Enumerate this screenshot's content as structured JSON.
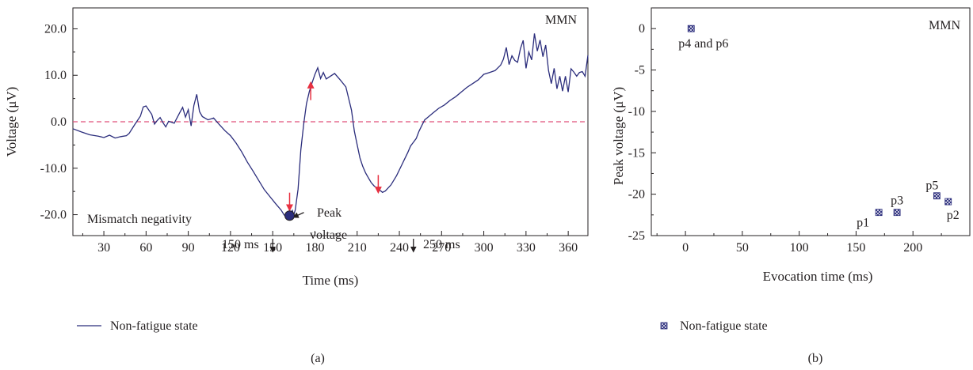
{
  "colors": {
    "series": "#2b2d7c",
    "baseline": "#e0517a",
    "arrow_red": "#e83040",
    "arrow_black": "#231f20",
    "axis": "#231f20"
  },
  "chart_data": [
    {
      "type": "line",
      "panel_label": "(a)",
      "xlabel": "Time (ms)",
      "ylabel": "Voltage (μV)",
      "xlim": [
        8,
        374
      ],
      "ylim": [
        -24.5,
        24.5
      ],
      "xticks": [
        30,
        60,
        90,
        120,
        150,
        180,
        210,
        240,
        270,
        300,
        330,
        360
      ],
      "yticks": [
        {
          "value": 20,
          "label": "20.0"
        },
        {
          "value": 10,
          "label": "10.0"
        },
        {
          "value": 0,
          "label": "0.0"
        },
        {
          "value": -10,
          "label": "-10.0"
        },
        {
          "value": -20,
          "label": "-20.0"
        }
      ],
      "corner_label": "MMN",
      "baseline": 0,
      "series": [
        {
          "name": "Non-fatigue state",
          "x": [
            8,
            14,
            20,
            26,
            30,
            34,
            38,
            42,
            46,
            48,
            52,
            56,
            58,
            60,
            64,
            66,
            68,
            70,
            72,
            74,
            76,
            80,
            84,
            86,
            88,
            90,
            92,
            94,
            96,
            98,
            100,
            104,
            108,
            112,
            116,
            120,
            124,
            128,
            132,
            136,
            140,
            144,
            148,
            152,
            156,
            158,
            160,
            162,
            164,
            165,
            166,
            168,
            170,
            172,
            174,
            176,
            178,
            180,
            182,
            184,
            186,
            188,
            190,
            194,
            198,
            202,
            206,
            208,
            210,
            212,
            214,
            216,
            218,
            220,
            222,
            224,
            226,
            228,
            230,
            234,
            238,
            242,
            246,
            248,
            250,
            252,
            254,
            256,
            258,
            260,
            264,
            268,
            272,
            276,
            280,
            284,
            288,
            292,
            296,
            300,
            304,
            308,
            312,
            314,
            316,
            318,
            320,
            322,
            324,
            326,
            328,
            330,
            332,
            334,
            336,
            338,
            340,
            342,
            344,
            346,
            348,
            350,
            352,
            354,
            356,
            358,
            360,
            362,
            364,
            366,
            368,
            370,
            372,
            374
          ],
          "y": [
            -1.5,
            -2.2,
            -2.8,
            -3.1,
            -3.4,
            -2.9,
            -3.5,
            -3.2,
            -3.0,
            -2.5,
            -0.6,
            1.2,
            3.2,
            3.4,
            1.6,
            -0.5,
            0.3,
            0.9,
            -0.2,
            -1.1,
            0.1,
            -0.3,
            2.0,
            3.1,
            1.0,
            2.6,
            -0.9,
            3.5,
            5.9,
            2.2,
            1.1,
            0.4,
            0.8,
            -0.6,
            -1.9,
            -3.0,
            -4.6,
            -6.5,
            -8.7,
            -10.6,
            -12.6,
            -14.6,
            -16.1,
            -17.6,
            -19.0,
            -20.0,
            -20.6,
            -20.4,
            -19.1,
            -20.0,
            -19.0,
            -14.5,
            -6.0,
            -0.5,
            3.9,
            6.5,
            8.4,
            10.2,
            11.6,
            9.3,
            10.6,
            9.2,
            9.6,
            10.4,
            9.0,
            7.5,
            2.5,
            -2.0,
            -4.9,
            -7.8,
            -9.6,
            -11.0,
            -12.1,
            -13.1,
            -13.8,
            -14.3,
            -14.7,
            -15.2,
            -14.9,
            -13.6,
            -11.6,
            -9.1,
            -6.6,
            -5.2,
            -4.4,
            -3.6,
            -2.0,
            -0.8,
            0.4,
            0.9,
            1.9,
            2.9,
            3.6,
            4.6,
            5.4,
            6.4,
            7.4,
            8.2,
            9.0,
            10.2,
            10.6,
            11.0,
            12.2,
            13.5,
            16.0,
            12.3,
            14.2,
            13.2,
            12.8,
            15.7,
            17.5,
            11.5,
            15.0,
            13.3,
            19.0,
            15.2,
            17.6,
            14.0,
            16.5,
            11.0,
            8.2,
            11.5,
            7.1,
            9.8,
            6.6,
            9.8,
            6.4,
            11.4,
            10.7,
            9.8,
            10.6,
            10.8,
            9.8,
            14.3
          ]
        }
      ],
      "annotations": {
        "mismatch": "Mismatch negativity",
        "peak_line1": "Peak",
        "peak_line2": "voltage",
        "t150": "150 ms",
        "t250": "250 ms"
      },
      "annotation_points": {
        "peak": {
          "x": 162,
          "y": -20.2
        },
        "red_down_1": {
          "x": 162,
          "y": -19.0
        },
        "red_up": {
          "x": 177,
          "y": 8.4
        },
        "red_down_2": {
          "x": 225,
          "y": -15.2
        },
        "black_150": {
          "x": 150,
          "y": -24.0
        },
        "black_250": {
          "x": 250,
          "y": -24.0
        }
      }
    },
    {
      "type": "scatter",
      "panel_label": "(b)",
      "xlabel": "Evocation time (ms)",
      "ylabel": "Peak voltage (μV)",
      "xlim": [
        -30,
        250
      ],
      "ylim": [
        -25,
        2.5
      ],
      "xticks": [
        0,
        50,
        100,
        150,
        200
      ],
      "yticks": [
        0,
        -5,
        -10,
        -15,
        -20,
        -25
      ],
      "corner_label": "MMN",
      "series": [
        {
          "name": "Non-fatigue state",
          "points": [
            {
              "label": "p4 and p6",
              "x": 5,
              "y": 0
            },
            {
              "label": "p1",
              "x": 170,
              "y": -22.2
            },
            {
              "label": "p3",
              "x": 186,
              "y": -22.2
            },
            {
              "label": "p5",
              "x": 221,
              "y": -20.2
            },
            {
              "label": "p2",
              "x": 231,
              "y": -20.9
            }
          ]
        }
      ]
    }
  ]
}
